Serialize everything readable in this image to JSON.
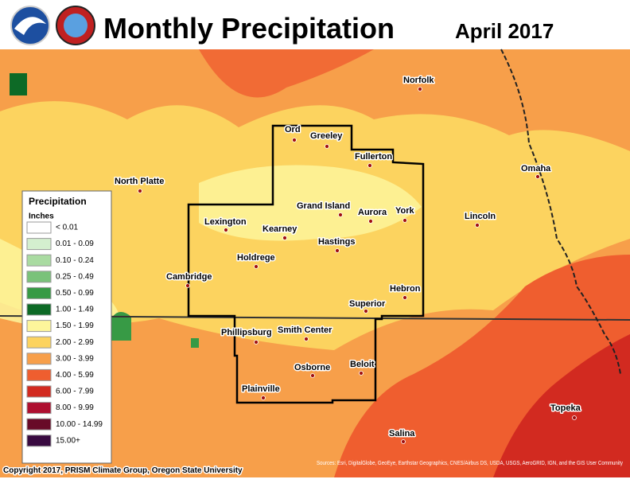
{
  "header": {
    "title": "Monthly Precipitation",
    "date": "April 2017"
  },
  "legend": {
    "title": "Precipitation",
    "units": "Inches",
    "items": [
      {
        "label": "< 0.01",
        "color": "#ffffff"
      },
      {
        "label": "0.01 - 0.09",
        "color": "#d4efcf"
      },
      {
        "label": "0.10 - 0.24",
        "color": "#a9dba1"
      },
      {
        "label": "0.25 - 0.49",
        "color": "#7ac27a"
      },
      {
        "label": "0.50 - 0.99",
        "color": "#379a45"
      },
      {
        "label": "1.00 - 1.49",
        "color": "#0d6a26"
      },
      {
        "label": "1.50 - 1.99",
        "color": "#fdf59b"
      },
      {
        "label": "2.00 - 2.99",
        "color": "#fcd35f"
      },
      {
        "label": "3.00 - 3.99",
        "color": "#f79f4a"
      },
      {
        "label": "4.00 - 5.99",
        "color": "#ef5e2f"
      },
      {
        "label": "6.00 - 7.99",
        "color": "#d22a20"
      },
      {
        "label": "8.00 - 9.99",
        "color": "#ae0f30"
      },
      {
        "label": "10.00 - 14.99",
        "color": "#680a28"
      },
      {
        "label": "15.00+",
        "color": "#380a40"
      }
    ]
  },
  "cities": [
    "Norfolk",
    "Ord",
    "Greeley",
    "Fullerton",
    "Omaha",
    "North Platte",
    "Grand Island",
    "Aurora",
    "York",
    "Lexington",
    "Lincoln",
    "Kearney",
    "Hastings",
    "Holdrege",
    "Cambridge",
    "Hebron",
    "Superior",
    "Phillipsburg",
    "Smith Center",
    "Beloit",
    "Osborne",
    "Plainville",
    "Topeka",
    "Salina"
  ],
  "footer": {
    "copyright": "Copyright 2017, PRISM Climate Group, Oregon State University",
    "sources": "Sources: Esri, DigitalGlobe, GeoEye, Earthstar Geographics, CNES/Airbus DS, USDA, USGS, AeroGRID, IGN, and the GIS User Community"
  }
}
